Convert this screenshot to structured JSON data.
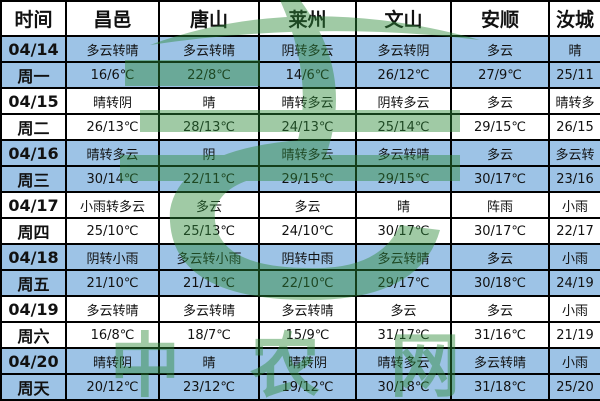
{
  "headers": [
    "时间",
    "昌邑",
    "唐山",
    "莱州",
    "文山",
    "安顺",
    "汝城"
  ],
  "rows": [
    {
      "date": "04/14",
      "weekday": "周一",
      "weather": [
        "多云转晴",
        "多云转晴",
        "阴转多云",
        "多云转阴",
        "多云",
        "晴"
      ],
      "temps": [
        "16/6℃",
        "22/8℃",
        "14/6℃",
        "26/12℃",
        "27/9℃",
        "25/11"
      ]
    },
    {
      "date": "04/15",
      "weekday": "周二",
      "weather": [
        "晴转阴",
        "晴",
        "晴转多云",
        "阴转多云",
        "多云",
        "晴转多"
      ],
      "temps": [
        "26/13℃",
        "28/13℃",
        "24/13℃",
        "25/14℃",
        "29/15℃",
        "26/15"
      ]
    },
    {
      "date": "04/16",
      "weekday": "周三",
      "weather": [
        "晴转多云",
        "阴",
        "晴转多云",
        "多云转晴",
        "多云",
        "多云转"
      ],
      "temps": [
        "30/14℃",
        "22/11℃",
        "29/15℃",
        "29/15℃",
        "30/17℃",
        "23/16"
      ]
    },
    {
      "date": "04/17",
      "weekday": "周四",
      "weather": [
        "小雨转多云",
        "多云",
        "多云",
        "晴",
        "阵雨",
        "小雨"
      ],
      "temps": [
        "25/10℃",
        "25/13℃",
        "24/10℃",
        "30/17℃",
        "30/17℃",
        "22/17"
      ]
    },
    {
      "date": "04/18",
      "weekday": "周五",
      "weather": [
        "阴转小雨",
        "多云转小雨",
        "阴转中雨",
        "多云转晴",
        "多云",
        "小雨"
      ],
      "temps": [
        "21/10℃",
        "21/11℃",
        "22/10℃",
        "29/17℃",
        "30/18℃",
        "24/19"
      ]
    },
    {
      "date": "04/19",
      "weekday": "周六",
      "weather": [
        "多云转晴",
        "多云转晴",
        "多云转晴",
        "多云",
        "多云",
        "小雨"
      ],
      "temps": [
        "16/8℃",
        "18/7℃",
        "15/9℃",
        "31/17℃",
        "31/16℃",
        "21/19"
      ]
    },
    {
      "date": "04/20",
      "weekday": "周天",
      "weather": [
        "晴转阴",
        "晴",
        "晴转阴",
        "晴转多云",
        "多云转晴",
        "小雨"
      ],
      "temps": [
        "20/12℃",
        "23/12℃",
        "19/12℃",
        "30/18℃",
        "31/18℃",
        "25/20"
      ]
    }
  ],
  "watermark": {
    "text": "中农网"
  },
  "colors": {
    "row_blue": "#9dc3e6",
    "watermark": "#2e8b3a"
  }
}
